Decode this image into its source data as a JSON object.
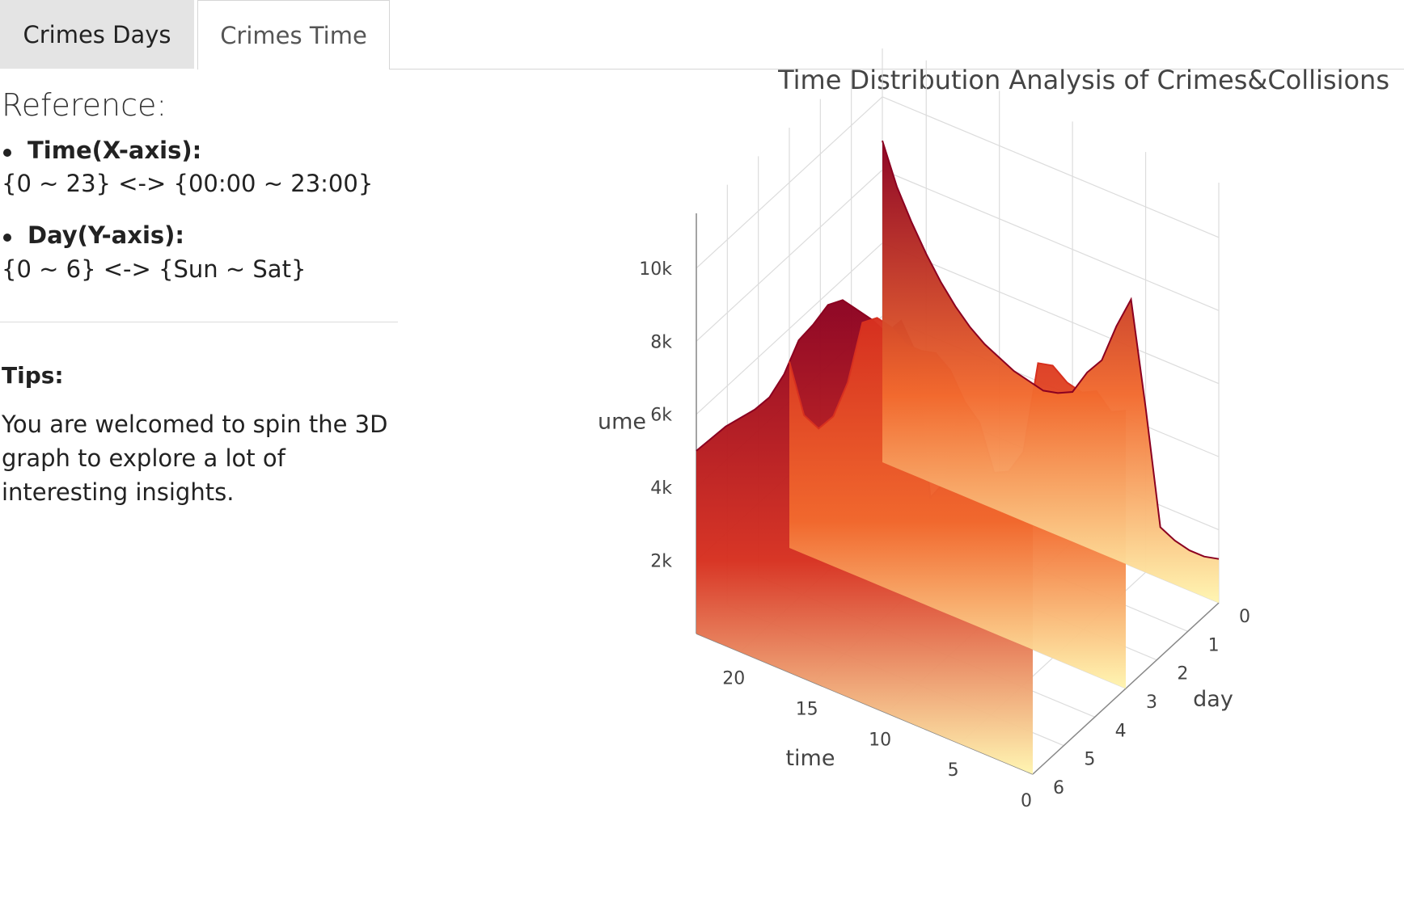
{
  "tabs": [
    {
      "label": "Crimes Days",
      "active": false
    },
    {
      "label": "Crimes Time",
      "active": true
    }
  ],
  "reference": {
    "title": "Reference:",
    "items": [
      {
        "head": "Time(X-axis):",
        "text": "{0 ~ 23} <-> {00:00 ~ 23:00}"
      },
      {
        "head": "Day(Y-axis):",
        "text": "{0 ~ 6} <-> {Sun ~ Sat}"
      }
    ]
  },
  "tips": {
    "title": "Tips:",
    "text": "You are welcomed to spin the 3D graph to explore a lot of interesting insights."
  },
  "chart_data": {
    "type": "surface",
    "title": "Time Distribution Analysis of Crimes&Collisions",
    "x_title": "time",
    "y_title": "day",
    "z_title": "volume",
    "x_ticks": [
      "0",
      "5",
      "10",
      "15",
      "20"
    ],
    "y_ticks": [
      "0",
      "1",
      "2",
      "3",
      "4",
      "5",
      "6"
    ],
    "z_ticks": [
      "2k",
      "4k",
      "6k",
      "8k",
      "10k"
    ],
    "colorscale": [
      "#fff5b0",
      "#fdd27b",
      "#fca050",
      "#f26a2e",
      "#d7301f",
      "#8b0020"
    ],
    "ridges": [
      {
        "name": "",
        "day": 6,
        "values": [
          8000,
          7800,
          7900,
          7700,
          8300,
          9200,
          7000,
          6400,
          10200,
          10900,
          10400,
          10600,
          10700,
          10800,
          10500,
          9800,
          9200,
          8100,
          7300,
          6800,
          6400,
          6000,
          5500,
          5000
        ]
      },
      {
        "name": "",
        "day": 3,
        "values": [
          7600,
          7400,
          7800,
          7600,
          7700,
          8000,
          7900,
          5300,
          4600,
          4400,
          5600,
          6000,
          6700,
          7000,
          6900,
          6900,
          7200,
          7300,
          7000,
          5200,
          4100,
          3600,
          3800,
          5100
        ]
      },
      {
        "name": "",
        "day": 0,
        "values": [
          1200,
          1100,
          1100,
          1200,
          1400,
          4500,
          7300,
          6400,
          5300,
          4800,
          4100,
          3900,
          3800,
          3900,
          4000,
          4200,
          4400,
          4700,
          5100,
          5600,
          6200,
          6900,
          7700,
          8800
        ]
      }
    ]
  }
}
